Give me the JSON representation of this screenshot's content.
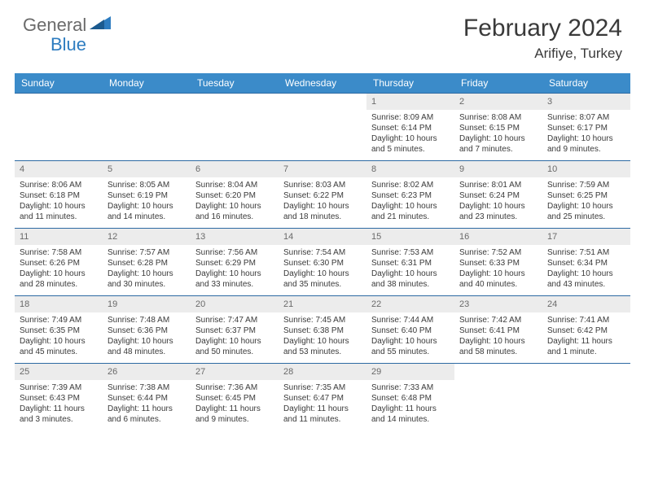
{
  "brand": {
    "part1": "General",
    "part2": "Blue"
  },
  "title": "February 2024",
  "location": "Arifiye, Turkey",
  "colors": {
    "header_bg": "#3b8bc9",
    "row_border": "#2d6aa3",
    "daynum_bg": "#ececec",
    "text": "#3a3a3a",
    "muted": "#6a6a6a",
    "brand_blue": "#2d7cc0",
    "background": "#ffffff"
  },
  "dows": [
    "Sunday",
    "Monday",
    "Tuesday",
    "Wednesday",
    "Thursday",
    "Friday",
    "Saturday"
  ],
  "weeks": [
    [
      null,
      null,
      null,
      null,
      {
        "n": "1",
        "sr": "8:09 AM",
        "ss": "6:14 PM",
        "dl": "10 hours and 5 minutes."
      },
      {
        "n": "2",
        "sr": "8:08 AM",
        "ss": "6:15 PM",
        "dl": "10 hours and 7 minutes."
      },
      {
        "n": "3",
        "sr": "8:07 AM",
        "ss": "6:17 PM",
        "dl": "10 hours and 9 minutes."
      }
    ],
    [
      {
        "n": "4",
        "sr": "8:06 AM",
        "ss": "6:18 PM",
        "dl": "10 hours and 11 minutes."
      },
      {
        "n": "5",
        "sr": "8:05 AM",
        "ss": "6:19 PM",
        "dl": "10 hours and 14 minutes."
      },
      {
        "n": "6",
        "sr": "8:04 AM",
        "ss": "6:20 PM",
        "dl": "10 hours and 16 minutes."
      },
      {
        "n": "7",
        "sr": "8:03 AM",
        "ss": "6:22 PM",
        "dl": "10 hours and 18 minutes."
      },
      {
        "n": "8",
        "sr": "8:02 AM",
        "ss": "6:23 PM",
        "dl": "10 hours and 21 minutes."
      },
      {
        "n": "9",
        "sr": "8:01 AM",
        "ss": "6:24 PM",
        "dl": "10 hours and 23 minutes."
      },
      {
        "n": "10",
        "sr": "7:59 AM",
        "ss": "6:25 PM",
        "dl": "10 hours and 25 minutes."
      }
    ],
    [
      {
        "n": "11",
        "sr": "7:58 AM",
        "ss": "6:26 PM",
        "dl": "10 hours and 28 minutes."
      },
      {
        "n": "12",
        "sr": "7:57 AM",
        "ss": "6:28 PM",
        "dl": "10 hours and 30 minutes."
      },
      {
        "n": "13",
        "sr": "7:56 AM",
        "ss": "6:29 PM",
        "dl": "10 hours and 33 minutes."
      },
      {
        "n": "14",
        "sr": "7:54 AM",
        "ss": "6:30 PM",
        "dl": "10 hours and 35 minutes."
      },
      {
        "n": "15",
        "sr": "7:53 AM",
        "ss": "6:31 PM",
        "dl": "10 hours and 38 minutes."
      },
      {
        "n": "16",
        "sr": "7:52 AM",
        "ss": "6:33 PM",
        "dl": "10 hours and 40 minutes."
      },
      {
        "n": "17",
        "sr": "7:51 AM",
        "ss": "6:34 PM",
        "dl": "10 hours and 43 minutes."
      }
    ],
    [
      {
        "n": "18",
        "sr": "7:49 AM",
        "ss": "6:35 PM",
        "dl": "10 hours and 45 minutes."
      },
      {
        "n": "19",
        "sr": "7:48 AM",
        "ss": "6:36 PM",
        "dl": "10 hours and 48 minutes."
      },
      {
        "n": "20",
        "sr": "7:47 AM",
        "ss": "6:37 PM",
        "dl": "10 hours and 50 minutes."
      },
      {
        "n": "21",
        "sr": "7:45 AM",
        "ss": "6:38 PM",
        "dl": "10 hours and 53 minutes."
      },
      {
        "n": "22",
        "sr": "7:44 AM",
        "ss": "6:40 PM",
        "dl": "10 hours and 55 minutes."
      },
      {
        "n": "23",
        "sr": "7:42 AM",
        "ss": "6:41 PM",
        "dl": "10 hours and 58 minutes."
      },
      {
        "n": "24",
        "sr": "7:41 AM",
        "ss": "6:42 PM",
        "dl": "11 hours and 1 minute."
      }
    ],
    [
      {
        "n": "25",
        "sr": "7:39 AM",
        "ss": "6:43 PM",
        "dl": "11 hours and 3 minutes."
      },
      {
        "n": "26",
        "sr": "7:38 AM",
        "ss": "6:44 PM",
        "dl": "11 hours and 6 minutes."
      },
      {
        "n": "27",
        "sr": "7:36 AM",
        "ss": "6:45 PM",
        "dl": "11 hours and 9 minutes."
      },
      {
        "n": "28",
        "sr": "7:35 AM",
        "ss": "6:47 PM",
        "dl": "11 hours and 11 minutes."
      },
      {
        "n": "29",
        "sr": "7:33 AM",
        "ss": "6:48 PM",
        "dl": "11 hours and 14 minutes."
      },
      null,
      null
    ]
  ],
  "labels": {
    "sunrise": "Sunrise: ",
    "sunset": "Sunset: ",
    "daylight": "Daylight: "
  }
}
